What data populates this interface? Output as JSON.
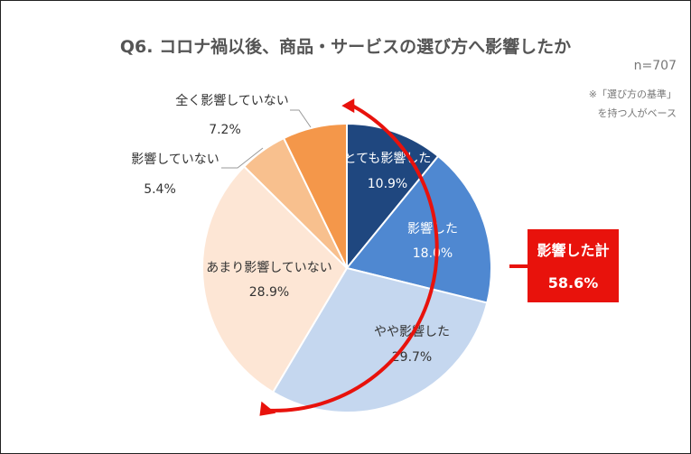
{
  "chart_data": {
    "type": "pie",
    "title": "Q6. コロナ禍以後、商品・サービスの選び方へ影響したか",
    "n_label": "n=707",
    "base_note": [
      "※「選び方の基準」",
      "を持つ人がベース"
    ],
    "labels": [
      "とても影響した",
      "影響した",
      "やや影響した",
      "あまり影響していない",
      "影響していない",
      "全く影響していない"
    ],
    "values": [
      10.9,
      18.0,
      29.7,
      28.9,
      5.4,
      7.2
    ],
    "value_labels": [
      "10.9%",
      "18.0%",
      "29.7%",
      "28.9%",
      "5.4%",
      "7.2%"
    ],
    "colors": [
      "#1f477f",
      "#4f88d1",
      "#c5d7ef",
      "#fde6d5",
      "#f8c08e",
      "#f4974a"
    ],
    "label_colors": [
      "#ffffff",
      "#ffffff",
      "#333333",
      "#333333",
      "#333333",
      "#333333"
    ],
    "total": {
      "label": "影響した計",
      "value": "58.6%",
      "color": "#e8120c"
    }
  }
}
